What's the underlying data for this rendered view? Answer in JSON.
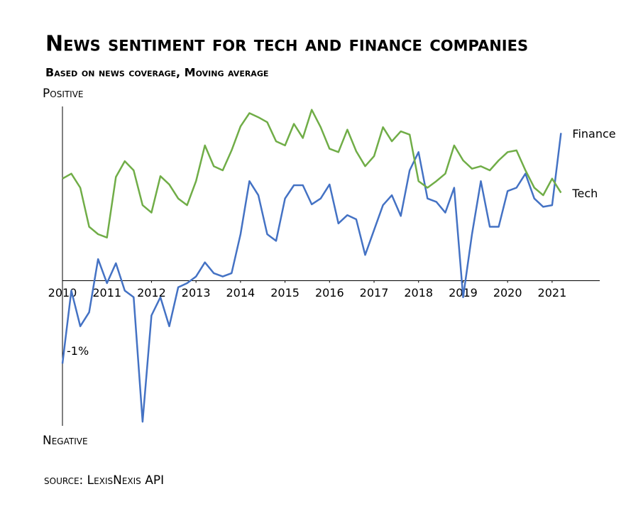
{
  "chart_data": {
    "type": "line",
    "title": "News sentiment for tech and finance companies",
    "subtitle": "Based on news coverage, Moving average",
    "y_top_label": "Positive",
    "y_bottom_label": "Negative",
    "source": "source: LexisNexis API",
    "annotation": "-1%",
    "x": [
      2010.0,
      2010.2,
      2010.4,
      2010.6,
      2010.8,
      2011.0,
      2011.2,
      2011.4,
      2011.6,
      2011.8,
      2012.0,
      2012.2,
      2012.4,
      2012.6,
      2012.8,
      2013.0,
      2013.2,
      2013.4,
      2013.6,
      2013.8,
      2014.0,
      2014.2,
      2014.4,
      2014.6,
      2014.8,
      2015.0,
      2015.2,
      2015.4,
      2015.6,
      2015.8,
      2016.0,
      2016.2,
      2016.4,
      2016.6,
      2016.8,
      2017.0,
      2017.2,
      2017.4,
      2017.6,
      2017.8,
      2018.0,
      2018.2,
      2018.4,
      2018.6,
      2018.8,
      2019.0,
      2019.2,
      2019.4,
      2019.6,
      2019.8,
      2020.0,
      2020.2,
      2020.4,
      2020.6,
      2020.8,
      2021.0,
      2021.2
    ],
    "series": [
      {
        "name": "Finance",
        "color": "#4472c4",
        "values": [
          -1.0,
          -0.12,
          -0.55,
          -0.38,
          0.26,
          -0.03,
          0.21,
          -0.12,
          -0.2,
          -1.7,
          -0.42,
          -0.2,
          -0.55,
          -0.08,
          -0.03,
          0.05,
          0.22,
          0.09,
          0.05,
          0.09,
          0.56,
          1.2,
          1.03,
          0.56,
          0.48,
          0.99,
          1.15,
          1.15,
          0.92,
          0.99,
          1.16,
          0.69,
          0.79,
          0.74,
          0.31,
          0.61,
          0.91,
          1.03,
          0.78,
          1.33,
          1.55,
          0.99,
          0.95,
          0.82,
          1.12,
          -0.2,
          0.56,
          1.2,
          0.65,
          0.65,
          1.08,
          1.12,
          1.29,
          0.99,
          0.89,
          0.91,
          1.78
        ]
      },
      {
        "name": "Tech",
        "color": "#70ad47",
        "values": [
          1.23,
          1.29,
          1.12,
          0.65,
          0.56,
          0.52,
          1.25,
          1.44,
          1.33,
          0.91,
          0.82,
          1.26,
          1.16,
          0.99,
          0.91,
          1.2,
          1.63,
          1.38,
          1.33,
          1.57,
          1.86,
          2.02,
          1.97,
          1.91,
          1.68,
          1.63,
          1.89,
          1.72,
          2.06,
          1.85,
          1.59,
          1.55,
          1.82,
          1.56,
          1.38,
          1.5,
          1.85,
          1.68,
          1.8,
          1.76,
          1.2,
          1.12,
          1.2,
          1.29,
          1.63,
          1.45,
          1.35,
          1.38,
          1.33,
          1.45,
          1.55,
          1.57,
          1.33,
          1.12,
          1.03,
          1.23,
          1.06
        ]
      }
    ],
    "xlim": [
      2010,
      2022.07
    ],
    "xticks": [
      2010,
      2011,
      2012,
      2013,
      2014,
      2015,
      2016,
      2017,
      2018,
      2019,
      2020,
      2021
    ],
    "ylim": [
      -1.75,
      2.1
    ],
    "grid": false
  }
}
